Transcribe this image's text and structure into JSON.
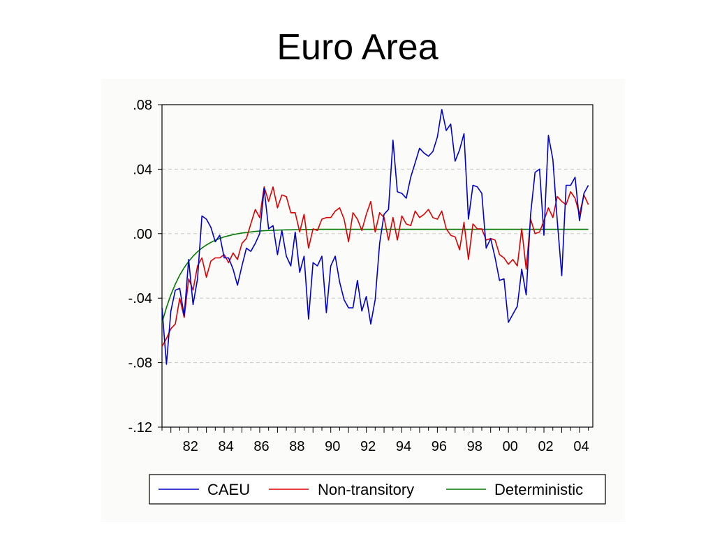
{
  "page": {
    "title": "Euro Area"
  },
  "chart_data": {
    "type": "line",
    "title": "Euro Area",
    "xlabel": "",
    "ylabel": "",
    "x_start": 1980.5,
    "x_step": 0.25,
    "xlim": [
      1980.5,
      2004.75
    ],
    "ylim": [
      -0.12,
      0.08
    ],
    "y_ticks": [
      0.08,
      0.04,
      0.0,
      -0.04,
      -0.08,
      -0.12
    ],
    "y_tick_labels": [
      ".08",
      ".04",
      ".00",
      "-.04",
      "-.08",
      "-.12"
    ],
    "x_ticks": [
      1982,
      1984,
      1986,
      1988,
      1990,
      1992,
      1994,
      1996,
      1998,
      2000,
      2002,
      2004
    ],
    "x_tick_labels": [
      "82",
      "84",
      "86",
      "88",
      "90",
      "92",
      "94",
      "96",
      "98",
      "00",
      "02",
      "04"
    ],
    "grid": true,
    "legend_position": "bottom",
    "series": [
      {
        "name": "CAEU",
        "color": "#0000cc",
        "values": [
          -0.046,
          -0.081,
          -0.048,
          -0.035,
          -0.034,
          -0.051,
          -0.016,
          -0.044,
          -0.028,
          0.011,
          0.009,
          0.004,
          -0.005,
          -0.001,
          -0.015,
          -0.015,
          -0.022,
          -0.032,
          -0.02,
          -0.009,
          -0.011,
          -0.006,
          0.0,
          0.028,
          0.003,
          0.005,
          -0.013,
          0.002,
          -0.014,
          -0.02,
          0.001,
          -0.024,
          -0.014,
          -0.053,
          -0.018,
          -0.02,
          -0.014,
          -0.049,
          -0.02,
          -0.014,
          -0.03,
          -0.041,
          -0.046,
          -0.046,
          -0.029,
          -0.048,
          -0.039,
          -0.056,
          -0.041,
          -0.006,
          0.012,
          0.015,
          0.058,
          0.026,
          0.025,
          0.022,
          0.035,
          0.044,
          0.053,
          0.05,
          0.048,
          0.051,
          0.06,
          0.077,
          0.064,
          0.068,
          0.045,
          0.052,
          0.062,
          0.009,
          0.03,
          0.029,
          0.025,
          -0.009,
          -0.003,
          -0.015,
          -0.029,
          -0.028,
          -0.055,
          -0.05,
          -0.045,
          -0.022,
          -0.038,
          0.012,
          0.038,
          0.04,
          -0.001,
          0.061,
          0.046,
          0.008,
          -0.026,
          0.03,
          0.03,
          0.035,
          0.008,
          0.025,
          0.03
        ]
      },
      {
        "name": "Non-transitory",
        "color": "#dd0000",
        "values": [
          -0.07,
          -0.065,
          -0.059,
          -0.056,
          -0.04,
          -0.052,
          -0.028,
          -0.035,
          -0.02,
          -0.015,
          -0.027,
          -0.017,
          -0.015,
          -0.015,
          -0.013,
          -0.018,
          -0.012,
          -0.016,
          -0.006,
          -0.003,
          0.006,
          0.015,
          0.01,
          0.029,
          0.02,
          0.029,
          0.016,
          0.024,
          0.023,
          0.013,
          0.013,
          0.001,
          0.012,
          -0.009,
          0.003,
          0.002,
          0.009,
          0.01,
          0.01,
          0.014,
          0.016,
          0.009,
          -0.005,
          0.013,
          0.009,
          0.002,
          0.012,
          0.02,
          0.001,
          0.013,
          0.01,
          -0.004,
          0.01,
          -0.004,
          0.011,
          0.006,
          0.005,
          0.014,
          0.01,
          0.012,
          0.015,
          0.01,
          0.009,
          0.014,
          0.003,
          -0.001,
          -0.002,
          -0.01,
          0.007,
          -0.016,
          0.006,
          0.003,
          0.003,
          -0.004,
          -0.003,
          -0.004,
          -0.013,
          -0.015,
          -0.019,
          -0.016,
          -0.02,
          0.003,
          -0.022,
          0.009,
          0.0,
          0.001,
          0.008,
          0.016,
          0.01,
          0.023,
          0.02,
          0.018,
          0.026,
          0.022,
          0.012,
          0.024,
          0.018
        ]
      },
      {
        "name": "Deterministic",
        "color": "#007a00",
        "values": [
          -0.0552,
          -0.0458,
          -0.0379,
          -0.0313,
          -0.0257,
          -0.0211,
          -0.0172,
          -0.014,
          -0.0112,
          -0.0089,
          -0.007,
          -0.0054,
          -0.0041,
          -0.003,
          -0.002,
          -0.0013,
          -0.0006,
          -0.0001,
          0.0004,
          0.0008,
          0.0011,
          0.0014,
          0.0016,
          0.0018,
          0.002,
          0.0021,
          0.0022,
          0.0023,
          0.0024,
          0.0024,
          0.0025,
          0.0025,
          0.0026,
          0.0026,
          0.0026,
          0.0027,
          0.0027,
          0.0027,
          0.0027,
          0.0027,
          0.0027,
          0.0027,
          0.0027,
          0.0027,
          0.0027,
          0.0027,
          0.0027,
          0.0027,
          0.0027,
          0.0027,
          0.0027,
          0.0027,
          0.0027,
          0.0027,
          0.0027,
          0.0027,
          0.0027,
          0.0027,
          0.0027,
          0.0027,
          0.0027,
          0.0027,
          0.0027,
          0.0027,
          0.0027,
          0.0027,
          0.0027,
          0.0027,
          0.0027,
          0.0027,
          0.0027,
          0.0027,
          0.0027,
          0.0027,
          0.0027,
          0.0027,
          0.0027,
          0.0027,
          0.0027,
          0.0027,
          0.0027,
          0.0027,
          0.0027,
          0.0027,
          0.0027,
          0.0027,
          0.0027,
          0.0027,
          0.0027,
          0.0027,
          0.0027,
          0.0027,
          0.0027,
          0.0027,
          0.0027,
          0.0027,
          0.0027
        ]
      }
    ]
  }
}
